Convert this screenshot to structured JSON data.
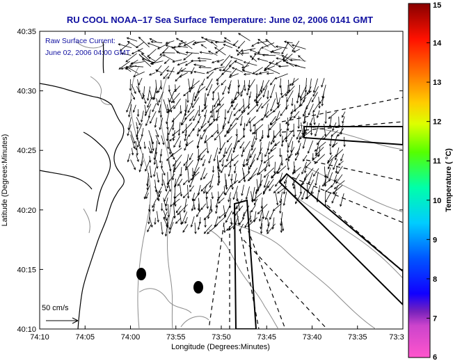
{
  "title": "RU COOL  NOAA–17  Sea Surface Temperature:  June 02, 2006 0141 GMT",
  "current_note": {
    "line1": "Raw Surface Current:",
    "line2": "June 02, 2006 04:00 GMT"
  },
  "scale_label": "50 cm/s",
  "axes": {
    "xlabel": "Longitude (Degrees:Minutes)",
    "ylabel": "Latitude (Degrees:Minutes)",
    "x_ticks": [
      "74:10",
      "74:05",
      "74:00",
      "73:55",
      "73:50",
      "73:45",
      "73:40",
      "73:35",
      "73:3"
    ],
    "y_ticks": [
      "40:35",
      "40:30",
      "40:25",
      "40:20",
      "40:15",
      "40:10"
    ]
  },
  "colorbar": {
    "label": "Temperature ( °C)",
    "ticks": [
      "15",
      "14",
      "13",
      "12",
      "11",
      "10",
      "9",
      "8",
      "7",
      "6"
    ],
    "range": [
      6,
      15
    ],
    "colors": [
      "#ff66cc",
      "#9933cc",
      "#0000ff",
      "#00ccff",
      "#00ff99",
      "#66ff00",
      "#ffff00",
      "#ff9900",
      "#ff2200",
      "#990000"
    ]
  },
  "colors": {
    "title": "#1010a0",
    "coast": "#000000",
    "bathymetry": "#888888",
    "arrows": "#000000"
  }
}
